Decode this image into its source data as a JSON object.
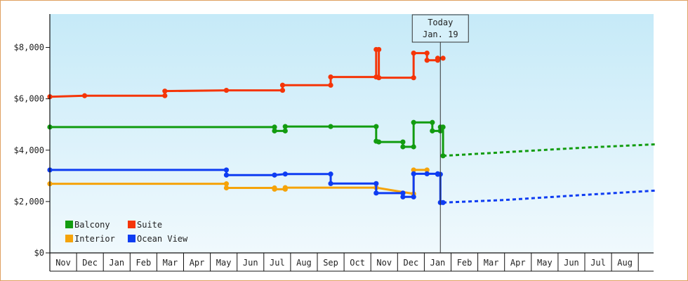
{
  "chart_data": {
    "type": "line",
    "title": "",
    "xlabel": "",
    "ylabel": "",
    "ylim": [
      0,
      9300
    ],
    "y_ticks": [
      0,
      2000,
      4000,
      6000,
      8000
    ],
    "y_tick_labels": [
      "$0",
      "$2,000",
      "$4,000",
      "$6,000",
      "$8,000"
    ],
    "months": [
      "Nov",
      "Dec",
      "Jan",
      "Feb",
      "Mar",
      "Apr",
      "May",
      "Jun",
      "Jul",
      "Aug",
      "Sep",
      "Oct",
      "Nov",
      "Dec",
      "Jan",
      "Feb",
      "Mar",
      "Apr",
      "May",
      "Jun",
      "Jul",
      "Aug"
    ],
    "x_unit": "months from start of the first Nov",
    "xlim": [
      0,
      22.7
    ],
    "today": {
      "x": 14.6,
      "line1": "Today",
      "line2": "Jan. 19"
    },
    "legend_position": "bottom-left",
    "grid": false,
    "series": [
      {
        "name": "Balcony",
        "color": "#129c10",
        "points": [
          [
            0,
            4900
          ],
          [
            8.4,
            4900
          ],
          [
            8.4,
            4750
          ],
          [
            8.8,
            4750
          ],
          [
            8.8,
            4920
          ],
          [
            10.5,
            4920
          ],
          [
            12.2,
            4920
          ],
          [
            12.2,
            4350
          ],
          [
            12.3,
            4320
          ],
          [
            13.2,
            4320
          ],
          [
            13.2,
            4130
          ],
          [
            13.6,
            4130
          ],
          [
            13.6,
            5080
          ],
          [
            14.3,
            5080
          ],
          [
            14.3,
            4750
          ],
          [
            14.6,
            4750
          ],
          [
            14.6,
            4900
          ],
          [
            14.7,
            4900
          ],
          [
            14.7,
            3780
          ]
        ],
        "projection": [
          [
            14.7,
            3780
          ],
          [
            17,
            3920
          ],
          [
            20,
            4100
          ],
          [
            22.7,
            4230
          ]
        ]
      },
      {
        "name": "Suite",
        "color": "#f53508",
        "points": [
          [
            0,
            6080
          ],
          [
            1.3,
            6120
          ],
          [
            4.3,
            6120
          ],
          [
            4.3,
            6300
          ],
          [
            6.6,
            6330
          ],
          [
            8.7,
            6330
          ],
          [
            8.7,
            6530
          ],
          [
            10.5,
            6530
          ],
          [
            10.5,
            6850
          ],
          [
            12.2,
            6850
          ],
          [
            12.2,
            7920
          ],
          [
            12.3,
            7920
          ],
          [
            12.3,
            6820
          ],
          [
            13.6,
            6820
          ],
          [
            13.6,
            7780
          ],
          [
            14.1,
            7780
          ],
          [
            14.1,
            7500
          ],
          [
            14.5,
            7500
          ],
          [
            14.5,
            7580
          ],
          [
            14.7,
            7580
          ]
        ],
        "projection": []
      },
      {
        "name": "Interior",
        "color": "#f5a30a",
        "points": [
          [
            0,
            2690
          ],
          [
            6.6,
            2690
          ],
          [
            6.6,
            2530
          ],
          [
            8.4,
            2530
          ],
          [
            8.4,
            2480
          ],
          [
            8.8,
            2480
          ],
          [
            8.8,
            2540
          ],
          [
            12.2,
            2540
          ],
          [
            13.6,
            2300
          ],
          [
            13.6,
            3230
          ],
          [
            14.1,
            3230
          ]
        ],
        "projection": []
      },
      {
        "name": "Ocean View",
        "color": "#0e3cf2",
        "points": [
          [
            0,
            3230
          ],
          [
            6.6,
            3230
          ],
          [
            6.6,
            3030
          ],
          [
            8.4,
            3030
          ],
          [
            8.8,
            3070
          ],
          [
            10.5,
            3070
          ],
          [
            10.5,
            2700
          ],
          [
            12.2,
            2700
          ],
          [
            12.2,
            2330
          ],
          [
            13.2,
            2330
          ],
          [
            13.2,
            2180
          ],
          [
            13.6,
            2180
          ],
          [
            13.6,
            3080
          ],
          [
            14.1,
            3080
          ],
          [
            14.5,
            3080
          ],
          [
            14.5,
            3060
          ],
          [
            14.6,
            3060
          ],
          [
            14.6,
            1960
          ],
          [
            14.7,
            1960
          ]
        ],
        "projection": [
          [
            14.7,
            1960
          ],
          [
            17,
            2060
          ],
          [
            20,
            2260
          ],
          [
            22.7,
            2430
          ]
        ]
      }
    ]
  }
}
